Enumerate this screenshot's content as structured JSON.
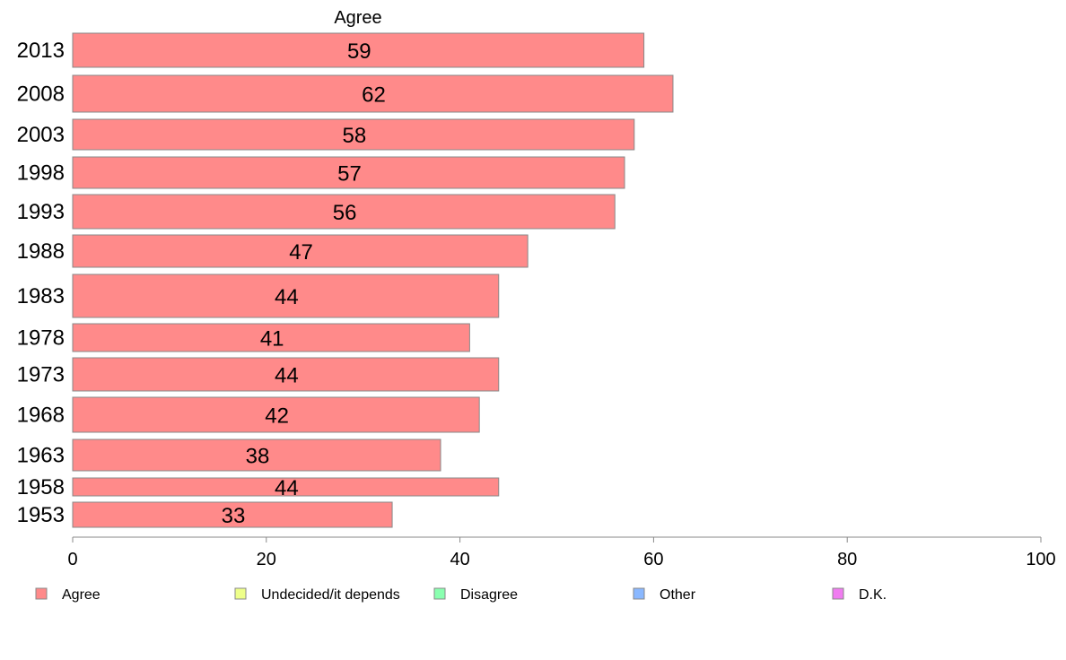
{
  "chart_data": {
    "type": "bar",
    "orientation": "horizontal",
    "title": "Agree",
    "categories": [
      "2013",
      "2008",
      "2003",
      "1998",
      "1993",
      "1988",
      "1983",
      "1978",
      "1973",
      "1968",
      "1963",
      "1958",
      "1953"
    ],
    "series": [
      {
        "name": "Agree",
        "color": "#ff8a8a",
        "values": [
          59,
          62,
          58,
          57,
          56,
          47,
          44,
          41,
          44,
          42,
          38,
          44,
          33
        ]
      }
    ],
    "xlim": [
      0,
      100
    ],
    "xticks": [
      "0",
      "20",
      "40",
      "60",
      "80",
      "100"
    ],
    "grid": false,
    "legend": {
      "placement": "bottom",
      "items": [
        {
          "label": "Agree",
          "color": "#ff8a8a"
        },
        {
          "label": "Undecided/it depends",
          "color": "#eeff8a"
        },
        {
          "label": "Disagree",
          "color": "#8affb0"
        },
        {
          "label": "Other",
          "color": "#8ab8ff"
        },
        {
          "label": "D.K.",
          "color": "#f07cf0"
        }
      ]
    }
  }
}
